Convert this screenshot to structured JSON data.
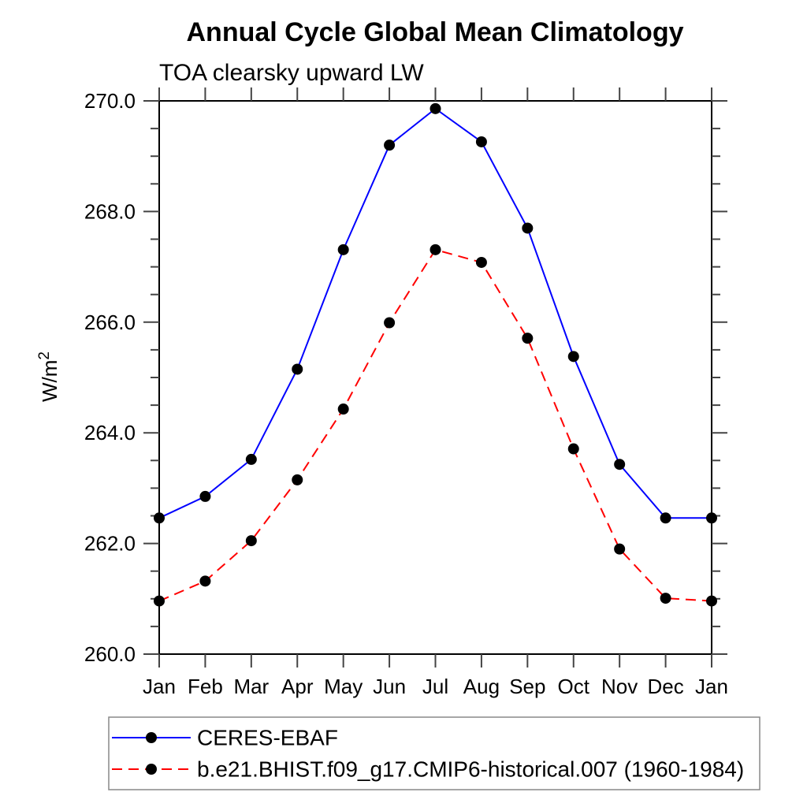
{
  "page": {
    "background": "#ffffff"
  },
  "chart_data": {
    "type": "line",
    "title": "Annual Cycle Global Mean Climatology",
    "subtitle": "TOA clearsky upward LW",
    "ylabel_base": "W/m",
    "ylabel_sup": "2",
    "categories": [
      "Jan",
      "Feb",
      "Mar",
      "Apr",
      "May",
      "Jun",
      "Jul",
      "Aug",
      "Sep",
      "Oct",
      "Nov",
      "Dec",
      "Jan"
    ],
    "ylim": [
      260.0,
      270.0
    ],
    "ytick_major_interval": 2.0,
    "ytick_minor_interval": 0.5,
    "ytick_labels": [
      "260.0",
      "262.0",
      "264.0",
      "266.0",
      "268.0",
      "270.0"
    ],
    "grid": false,
    "legend_position": "bottom-left-box",
    "axis_color": "#000000",
    "tick_color": "#444444",
    "legend_border_color": "#888888",
    "series": [
      {
        "name": "CERES-EBAF",
        "line_color": "#0000ff",
        "line_style": "solid",
        "marker": "filled-circle",
        "marker_color": "#000000",
        "values": [
          262.46,
          262.85,
          263.52,
          265.15,
          267.31,
          269.2,
          269.86,
          269.26,
          267.7,
          265.38,
          263.43,
          262.46,
          262.46
        ]
      },
      {
        "name": "b.e21.BHIST.f09_g17.CMIP6-historical.007 (1960-1984)",
        "line_color": "#ff0000",
        "line_style": "dashed",
        "marker": "filled-circle",
        "marker_color": "#000000",
        "values": [
          260.96,
          261.32,
          262.05,
          263.15,
          264.43,
          265.99,
          267.31,
          267.08,
          265.71,
          263.71,
          261.9,
          261.01,
          260.96
        ]
      }
    ]
  }
}
